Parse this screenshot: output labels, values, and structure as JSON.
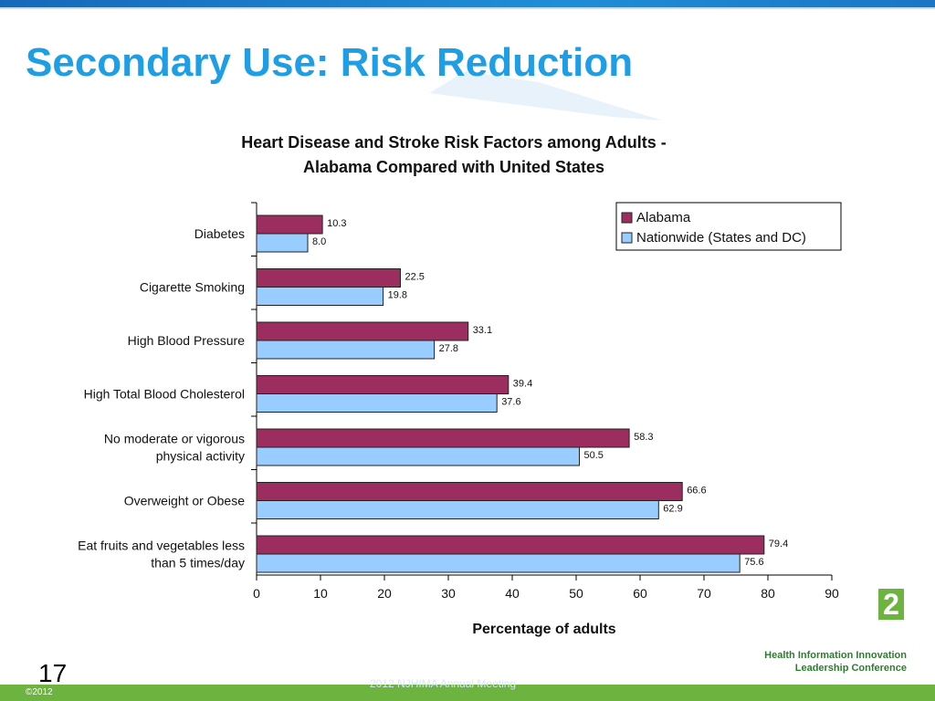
{
  "slide": {
    "title": "Secondary Use: Risk Reduction",
    "page_number": "17",
    "copyright": "©2012",
    "footer_text": "2012 NJHIMA Annual Meeting",
    "logo_mark": "2",
    "logo_line1": "Health Information Innovation",
    "logo_line2": "Leadership Conference"
  },
  "colors": {
    "title_blue": "#1e9ee4",
    "alabama": "#9b2d5f",
    "nationwide": "#99ccff",
    "green": "#6cb33f"
  },
  "chart_data": {
    "type": "bar",
    "orientation": "horizontal",
    "title_line1": "Heart Disease and Stroke Risk Factors among Adults -",
    "title_line2": "Alabama Compared with United States",
    "xlabel": "Percentage of adults",
    "ylabel": "",
    "xlim": [
      0,
      90
    ],
    "x_ticks": [
      0,
      10,
      20,
      30,
      40,
      50,
      60,
      70,
      80,
      90
    ],
    "categories": [
      [
        "Diabetes"
      ],
      [
        "Cigarette Smoking"
      ],
      [
        "High Blood Pressure"
      ],
      [
        "High Total Blood Cholesterol"
      ],
      [
        "No moderate or vigorous",
        "physical activity"
      ],
      [
        "Overweight or Obese"
      ],
      [
        "Eat fruits and vegetables less",
        "than 5 times/day"
      ]
    ],
    "series": [
      {
        "name": "Alabama",
        "values": [
          10.3,
          22.5,
          33.1,
          39.4,
          58.3,
          66.6,
          79.4
        ],
        "labels": [
          "10.3",
          "22.5",
          "33.1",
          "39.4",
          "58.3",
          "66.6",
          "79.4"
        ]
      },
      {
        "name": "Nationwide (States and DC)",
        "values": [
          8.0,
          19.8,
          27.8,
          37.6,
          50.5,
          62.9,
          75.6
        ],
        "labels": [
          "8.0",
          "19.8",
          "27.8",
          "37.6",
          "50.5",
          "62.9",
          "75.6"
        ]
      }
    ],
    "legend_position": "top-right",
    "grid": false
  }
}
